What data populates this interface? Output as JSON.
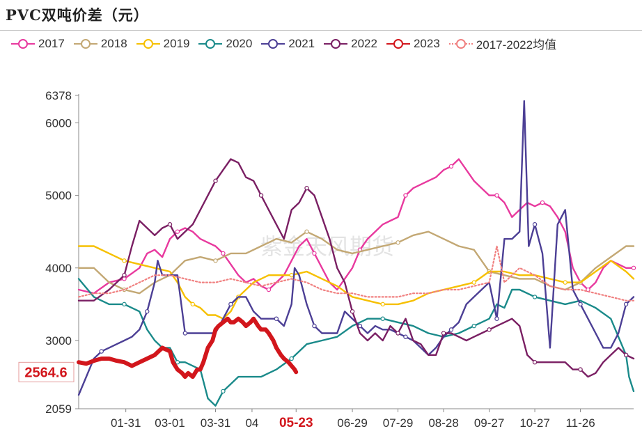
{
  "chart_data": {
    "type": "line",
    "title": "PVC双吨价差（元）",
    "xlabel": "",
    "ylabel": "",
    "ylim": [
      2059,
      6378
    ],
    "yticks": [
      2059,
      3000,
      4000,
      5000,
      6000,
      6378
    ],
    "x_range": [
      0,
      365
    ],
    "xtick_labels": [
      {
        "pos": 31,
        "label": "01-31"
      },
      {
        "pos": 60,
        "label": "03-01"
      },
      {
        "pos": 90,
        "label": "03-31"
      },
      {
        "pos": 114,
        "label": "04"
      },
      {
        "pos": 143,
        "label": "05-23",
        "highlight": true
      },
      {
        "pos": 180,
        "label": "06-29"
      },
      {
        "pos": 210,
        "label": "07-29"
      },
      {
        "pos": 240,
        "label": "08-28"
      },
      {
        "pos": 270,
        "label": "09-27"
      },
      {
        "pos": 300,
        "label": "10-27"
      },
      {
        "pos": 330,
        "label": "11-26"
      }
    ],
    "watermark": "紫金天风期货",
    "last_value_label": {
      "text": "2564.6",
      "value": 2564.6
    },
    "series": [
      {
        "name": "2017",
        "color": "#e8399e",
        "style": "solid",
        "x": [
          0,
          10,
          20,
          30,
          40,
          45,
          50,
          55,
          60,
          65,
          70,
          75,
          80,
          85,
          90,
          95,
          100,
          105,
          110,
          115,
          120,
          125,
          130,
          135,
          140,
          145,
          150,
          155,
          160,
          165,
          170,
          175,
          180,
          185,
          190,
          195,
          200,
          205,
          210,
          215,
          220,
          225,
          230,
          235,
          240,
          245,
          250,
          255,
          260,
          265,
          270,
          275,
          280,
          285,
          290,
          295,
          300,
          305,
          310,
          315,
          320,
          325,
          330,
          335,
          340,
          345,
          350,
          355,
          360,
          365
        ],
        "y": [
          3700,
          3650,
          3800,
          3850,
          4000,
          4200,
          4250,
          4150,
          4400,
          4500,
          4550,
          4500,
          4400,
          4350,
          4300,
          4200,
          4050,
          3900,
          3800,
          3850,
          3750,
          3700,
          3800,
          3900,
          4100,
          4300,
          4400,
          4200,
          4000,
          3800,
          3700,
          3850,
          4000,
          4250,
          4400,
          4500,
          4600,
          4650,
          4700,
          5000,
          5100,
          5150,
          5200,
          5250,
          5350,
          5400,
          5500,
          5350,
          5200,
          5100,
          5000,
          5000,
          4900,
          4700,
          4800,
          4900,
          4850,
          4900,
          4850,
          4700,
          4500,
          4000,
          3800,
          3700,
          3800,
          4000,
          4100,
          4050,
          4000,
          4000
        ]
      },
      {
        "name": "2018",
        "color": "#c3a874",
        "style": "solid",
        "x": [
          0,
          10,
          20,
          30,
          40,
          50,
          60,
          70,
          80,
          90,
          100,
          110,
          120,
          130,
          140,
          150,
          160,
          170,
          180,
          190,
          200,
          210,
          220,
          230,
          240,
          250,
          260,
          270,
          280,
          290,
          300,
          310,
          320,
          330,
          340,
          350,
          360,
          365
        ],
        "y": [
          4000,
          4000,
          3800,
          3700,
          3650,
          3800,
          3900,
          4100,
          4150,
          4100,
          4200,
          4200,
          4300,
          4400,
          4350,
          4500,
          4400,
          4250,
          4200,
          4250,
          4300,
          4350,
          4450,
          4500,
          4400,
          4300,
          4250,
          3950,
          3900,
          3850,
          3850,
          3750,
          3700,
          3800,
          4000,
          4150,
          4300,
          4300
        ]
      },
      {
        "name": "2019",
        "color": "#f6c001",
        "style": "solid",
        "x": [
          0,
          10,
          20,
          30,
          40,
          50,
          60,
          65,
          70,
          75,
          80,
          85,
          90,
          95,
          100,
          105,
          110,
          115,
          120,
          125,
          130,
          140,
          150,
          160,
          170,
          180,
          190,
          200,
          210,
          220,
          230,
          240,
          250,
          260,
          270,
          280,
          290,
          300,
          310,
          320,
          330,
          340,
          350,
          360,
          365
        ],
        "y": [
          4300,
          4300,
          4200,
          4100,
          4050,
          4000,
          3950,
          3800,
          3600,
          3500,
          3450,
          3350,
          3350,
          3300,
          3400,
          3600,
          3700,
          3800,
          3850,
          3900,
          3900,
          3900,
          3950,
          3850,
          3750,
          3600,
          3550,
          3500,
          3500,
          3550,
          3650,
          3700,
          3750,
          3800,
          3950,
          3950,
          3900,
          3900,
          3850,
          3800,
          3800,
          3950,
          4100,
          3950,
          3850
        ]
      },
      {
        "name": "2020",
        "color": "#1a8a8a",
        "style": "solid",
        "x": [
          0,
          10,
          20,
          30,
          40,
          45,
          50,
          55,
          60,
          65,
          70,
          75,
          80,
          85,
          90,
          95,
          100,
          105,
          110,
          120,
          130,
          140,
          150,
          160,
          170,
          180,
          190,
          200,
          210,
          220,
          230,
          240,
          250,
          260,
          270,
          275,
          280,
          285,
          290,
          300,
          310,
          320,
          330,
          340,
          350,
          360,
          362,
          365
        ],
        "y": [
          3850,
          3600,
          3500,
          3500,
          3400,
          3150,
          3000,
          2900,
          2900,
          2700,
          2700,
          2650,
          2600,
          2200,
          2100,
          2300,
          2400,
          2500,
          2500,
          2500,
          2600,
          2750,
          2950,
          3000,
          3050,
          3200,
          3300,
          3300,
          3250,
          3200,
          3100,
          3050,
          3100,
          3200,
          3300,
          3500,
          3450,
          3700,
          3700,
          3600,
          3550,
          3500,
          3550,
          3450,
          3300,
          2800,
          2500,
          2300
        ]
      },
      {
        "name": "2021",
        "color": "#4c3f95",
        "style": "solid",
        "x": [
          0,
          5,
          10,
          15,
          20,
          25,
          30,
          35,
          40,
          45,
          50,
          52,
          55,
          60,
          65,
          70,
          75,
          80,
          85,
          90,
          95,
          100,
          105,
          110,
          115,
          120,
          125,
          130,
          135,
          140,
          142,
          145,
          150,
          155,
          160,
          165,
          170,
          175,
          180,
          185,
          190,
          195,
          200,
          205,
          210,
          215,
          220,
          225,
          230,
          235,
          240,
          245,
          250,
          255,
          260,
          265,
          270,
          275,
          280,
          285,
          290,
          293,
          296,
          300,
          305,
          310,
          315,
          320,
          325,
          330,
          335,
          340,
          345,
          350,
          355,
          360,
          365
        ],
        "y": [
          2250,
          2500,
          2750,
          2850,
          2900,
          2950,
          3000,
          3050,
          3150,
          3400,
          3800,
          4100,
          3900,
          3900,
          3900,
          3100,
          3100,
          3100,
          3100,
          3100,
          3300,
          3500,
          3600,
          3600,
          3400,
          3300,
          3300,
          3300,
          3200,
          3500,
          4000,
          3900,
          3500,
          3200,
          3100,
          3100,
          3100,
          3400,
          3300,
          3200,
          3100,
          3200,
          3150,
          3150,
          3100,
          3050,
          3000,
          2900,
          2800,
          2900,
          3050,
          3150,
          3250,
          3500,
          3600,
          3700,
          3800,
          3300,
          4400,
          4400,
          4500,
          6300,
          4300,
          4600,
          4200,
          2900,
          4600,
          4800,
          3700,
          3500,
          3300,
          3100,
          2900,
          2900,
          3100,
          3500,
          3600
        ]
      },
      {
        "name": "2022",
        "color": "#7a1f63",
        "style": "solid",
        "x": [
          0,
          10,
          20,
          30,
          35,
          40,
          45,
          50,
          55,
          60,
          65,
          70,
          75,
          80,
          85,
          90,
          95,
          100,
          105,
          110,
          115,
          120,
          125,
          130,
          135,
          140,
          145,
          150,
          155,
          160,
          165,
          170,
          175,
          180,
          185,
          190,
          195,
          200,
          205,
          210,
          215,
          220,
          225,
          230,
          235,
          240,
          245,
          250,
          255,
          260,
          265,
          270,
          275,
          280,
          285,
          290,
          295,
          300,
          305,
          310,
          315,
          320,
          325,
          330,
          335,
          340,
          345,
          350,
          355,
          360,
          365
        ],
        "y": [
          3550,
          3550,
          3700,
          3900,
          4300,
          4650,
          4550,
          4450,
          4550,
          4600,
          4400,
          4500,
          4600,
          4800,
          5000,
          5200,
          5350,
          5500,
          5450,
          5250,
          5200,
          5000,
          4800,
          4600,
          4400,
          4800,
          4900,
          5100,
          5000,
          4700,
          4400,
          4000,
          3800,
          3400,
          3100,
          3000,
          3100,
          3000,
          3200,
          3100,
          3300,
          3000,
          2950,
          2800,
          2800,
          3100,
          3100,
          3050,
          3000,
          3050,
          3100,
          3150,
          3200,
          3250,
          3300,
          3200,
          2800,
          2700,
          2700,
          2700,
          2700,
          2700,
          2600,
          2600,
          2500,
          2550,
          2700,
          2800,
          2900,
          2800,
          2750
        ]
      },
      {
        "name": "2023",
        "color": "#d2161c",
        "style": "bold",
        "x": [
          0,
          5,
          10,
          15,
          20,
          25,
          30,
          35,
          40,
          45,
          50,
          55,
          60,
          62,
          65,
          68,
          70,
          72,
          75,
          78,
          80,
          82,
          85,
          88,
          90,
          92,
          95,
          98,
          100,
          102,
          105,
          108,
          110,
          113,
          115,
          118,
          120,
          123,
          125,
          128,
          130,
          133,
          135,
          138,
          140,
          142,
          143
        ],
        "y": [
          2700,
          2680,
          2720,
          2750,
          2750,
          2720,
          2700,
          2650,
          2700,
          2750,
          2800,
          2900,
          2850,
          2700,
          2600,
          2550,
          2500,
          2550,
          2500,
          2600,
          2600,
          2700,
          2900,
          3000,
          3150,
          3200,
          3250,
          3300,
          3250,
          3250,
          3300,
          3250,
          3200,
          3250,
          3300,
          3200,
          3150,
          3150,
          3100,
          3000,
          2900,
          2800,
          2750,
          2700,
          2650,
          2600,
          2564.6
        ]
      },
      {
        "name": "2017-2022均值",
        "color": "#f08080",
        "style": "dotted",
        "x": [
          0,
          10,
          20,
          30,
          40,
          50,
          60,
          70,
          80,
          90,
          100,
          110,
          120,
          130,
          140,
          150,
          160,
          170,
          180,
          190,
          200,
          210,
          220,
          230,
          240,
          250,
          260,
          270,
          275,
          280,
          290,
          300,
          310,
          320,
          330,
          340,
          350,
          360,
          365
        ],
        "y": [
          3600,
          3650,
          3650,
          3700,
          3800,
          3900,
          3900,
          3850,
          3800,
          3800,
          3850,
          3800,
          3750,
          3800,
          3850,
          3800,
          3700,
          3650,
          3650,
          3600,
          3600,
          3600,
          3650,
          3650,
          3700,
          3700,
          3750,
          3800,
          4300,
          3800,
          4000,
          3900,
          3750,
          3700,
          3700,
          3650,
          3600,
          3550,
          3550
        ]
      }
    ]
  }
}
